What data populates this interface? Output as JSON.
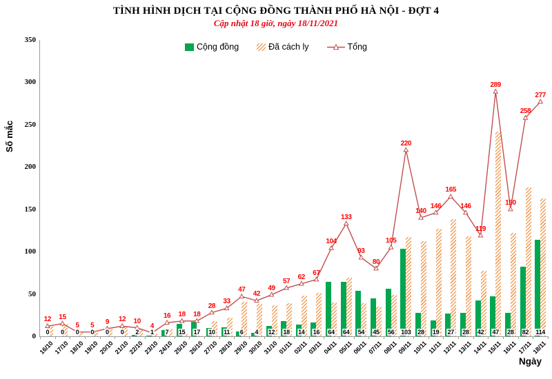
{
  "chart_data": {
    "type": "bar",
    "subtype": "clustered-bars-with-line-overlay",
    "title": "TÌNH HÌNH DỊCH TẠI CỘNG ĐỒNG THÀNH PHỐ HÀ NỘI - ĐỢT 4",
    "subtitle": "Cập nhật 18 giờ, ngày 18/11/2021",
    "xlabel": "Ngày",
    "ylabel": "Số mắc",
    "ylim": [
      0,
      350
    ],
    "yticks": [
      0,
      50,
      100,
      150,
      200,
      250,
      300,
      350
    ],
    "grid": false,
    "legend_position": "top",
    "categories": [
      "16/10",
      "17/10",
      "18/10",
      "19/10",
      "20/10",
      "21/10",
      "22/10",
      "23/10",
      "24/10",
      "25/10",
      "26/10",
      "27/10",
      "28/10",
      "29/10",
      "30/10",
      "31/10",
      "01/11",
      "02/11",
      "03/11",
      "04/11",
      "05/11",
      "06/11",
      "07/11",
      "08/11",
      "09/11",
      "10/11",
      "11/11",
      "12/11",
      "13/11",
      "14/11",
      "15/11",
      "16/11",
      "17/11",
      "18/11"
    ],
    "series": [
      {
        "name": "Cộng đồng",
        "type": "bar",
        "style": "solid",
        "color": "#00a650",
        "label_color": "#000000",
        "values": [
          0,
          0,
          0,
          0,
          0,
          0,
          2,
          1,
          7,
          15,
          17,
          10,
          11,
          6,
          4,
          12,
          18,
          14,
          16,
          64,
          64,
          54,
          45,
          56,
          103,
          28,
          19,
          27,
          28,
          42,
          47,
          28,
          82,
          114
        ]
      },
      {
        "name": "Đã cách ly",
        "type": "bar",
        "style": "hatched",
        "color": "#f2a15c",
        "values": [
          12,
          15,
          5,
          5,
          9,
          12,
          8,
          3,
          9,
          3,
          1,
          18,
          22,
          41,
          38,
          37,
          39,
          48,
          51,
          40,
          69,
          39,
          35,
          49,
          117,
          112,
          127,
          138,
          118,
          77,
          242,
          122,
          176,
          163
        ]
      },
      {
        "name": "Tổng",
        "type": "line",
        "marker": "open-triangle",
        "color": "#c0504d",
        "label_color": "#ff0000",
        "values": [
          12,
          15,
          5,
          5,
          9,
          12,
          10,
          4,
          16,
          18,
          18,
          28,
          33,
          47,
          42,
          49,
          57,
          62,
          67,
          104,
          133,
          93,
          80,
          105,
          220,
          140,
          146,
          165,
          146,
          119,
          289,
          150,
          258,
          277
        ]
      }
    ]
  }
}
